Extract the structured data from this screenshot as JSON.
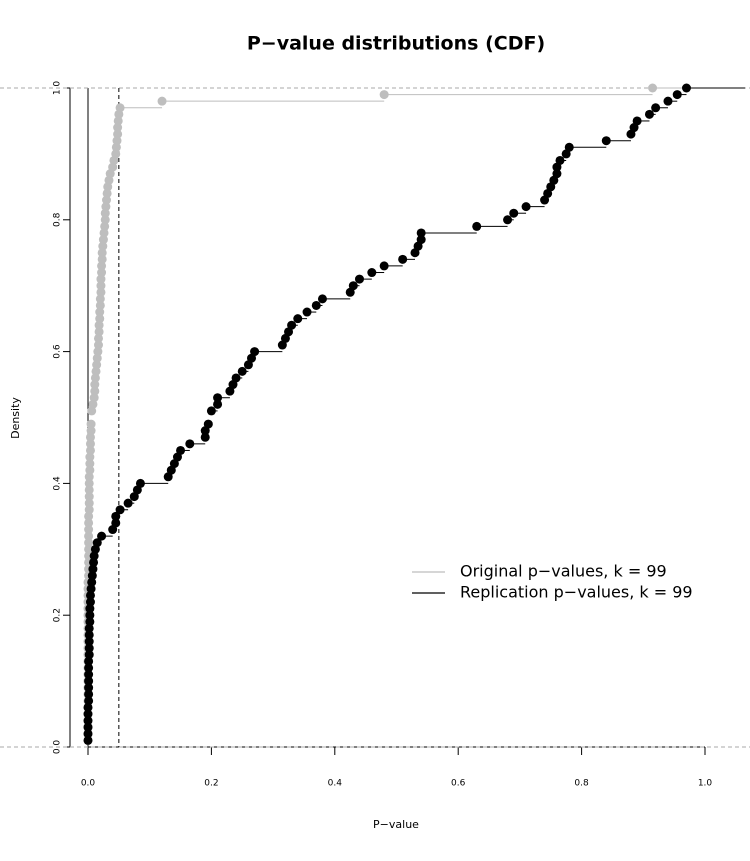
{
  "chart_data": {
    "type": "ecdf",
    "title": "P−value distributions (CDF)",
    "x_label": "P−value",
    "y_label": "Density",
    "xlim": [
      0,
      1
    ],
    "ylim": [
      0,
      1
    ],
    "xticks": [
      {
        "value": 0,
        "label": "0.0"
      },
      0.2,
      0.4,
      0.6,
      0.8,
      {
        "value": 1,
        "label": "1.0"
      }
    ],
    "yticks": [
      {
        "value": 0,
        "label": "0.0"
      },
      0.2,
      0.4,
      0.6,
      0.8,
      {
        "value": 1,
        "label": "1.0"
      }
    ],
    "vlines": [
      0.05
    ],
    "series": [
      {
        "name": "Original p−values, k =  99",
        "color": "#bebebe",
        "x": [
          0,
          0,
          0,
          0,
          0,
          0,
          0,
          0,
          0,
          0,
          0,
          0,
          0,
          0,
          0,
          0,
          0,
          0,
          0,
          0,
          0,
          0,
          0,
          0,
          0,
          0.001,
          0.001,
          0.001,
          0.001,
          0.001,
          0.001,
          0.001,
          0.001,
          0.001,
          0.001,
          0.002,
          0.002,
          0.002,
          0.002,
          0.002,
          0.002,
          0.003,
          0.003,
          0.003,
          0.004,
          0.004,
          0.004,
          0.005,
          0.005,
          0.006,
          0.008,
          0.01,
          0.011,
          0.011,
          0.012,
          0.013,
          0.014,
          0.015,
          0.016,
          0.017,
          0.017,
          0.018,
          0.018,
          0.019,
          0.019,
          0.02,
          0.02,
          0.021,
          0.021,
          0.021,
          0.022,
          0.022,
          0.023,
          0.023,
          0.024,
          0.025,
          0.026,
          0.027,
          0.028,
          0.028,
          0.029,
          0.03,
          0.031,
          0.032,
          0.034,
          0.036,
          0.04,
          0.042,
          0.045,
          0.046,
          0.047,
          0.048,
          0.048,
          0.049,
          0.05,
          0.052,
          0.12,
          0.48,
          0.915
        ],
        "values": [
          0.01,
          0.02,
          0.03,
          0.04,
          0.05,
          0.06,
          0.07,
          0.08,
          0.09,
          0.1,
          0.11,
          0.12,
          0.13,
          0.14,
          0.15,
          0.16,
          0.17,
          0.18,
          0.19,
          0.2,
          0.21,
          0.22,
          0.23,
          0.24,
          0.25,
          0.26,
          0.27,
          0.28,
          0.29,
          0.3,
          0.31,
          0.32,
          0.33,
          0.34,
          0.35,
          0.36,
          0.37,
          0.38,
          0.39,
          0.4,
          0.41,
          0.42,
          0.43,
          0.44,
          0.45,
          0.46,
          0.47,
          0.48,
          0.49,
          0.51,
          0.52,
          0.53,
          0.54,
          0.55,
          0.56,
          0.57,
          0.58,
          0.59,
          0.6,
          0.61,
          0.62,
          0.63,
          0.64,
          0.65,
          0.66,
          0.67,
          0.68,
          0.69,
          0.7,
          0.71,
          0.72,
          0.73,
          0.74,
          0.75,
          0.76,
          0.77,
          0.78,
          0.79,
          0.8,
          0.81,
          0.82,
          0.83,
          0.84,
          0.85,
          0.86,
          0.87,
          0.88,
          0.89,
          0.9,
          0.91,
          0.92,
          0.93,
          0.94,
          0.95,
          0.96,
          0.97,
          0.98,
          0.99,
          1.0
        ]
      },
      {
        "name": "Replication p−values, k =  99",
        "color": "#000000",
        "x": [
          0,
          0,
          0,
          0,
          0,
          0,
          0.001,
          0.001,
          0.001,
          0.001,
          0.001,
          0.001,
          0.001,
          0.002,
          0.002,
          0.002,
          0.002,
          0.002,
          0.003,
          0.003,
          0.003,
          0.004,
          0.004,
          0.005,
          0.006,
          0.007,
          0.008,
          0.009,
          0.01,
          0.012,
          0.015,
          0.022,
          0.04,
          0.045,
          0.045,
          0.052,
          0.065,
          0.075,
          0.08,
          0.085,
          0.13,
          0.135,
          0.14,
          0.145,
          0.15,
          0.165,
          0.19,
          0.19,
          0.195,
          0.2,
          0.21,
          0.21,
          0.23,
          0.235,
          0.24,
          0.25,
          0.26,
          0.265,
          0.27,
          0.315,
          0.32,
          0.325,
          0.33,
          0.34,
          0.355,
          0.37,
          0.38,
          0.425,
          0.43,
          0.44,
          0.46,
          0.48,
          0.51,
          0.53,
          0.535,
          0.54,
          0.54,
          0.63,
          0.68,
          0.69,
          0.71,
          0.74,
          0.745,
          0.75,
          0.755,
          0.76,
          0.76,
          0.765,
          0.775,
          0.78,
          0.84,
          0.88,
          0.885,
          0.89,
          0.91,
          0.92,
          0.94,
          0.955,
          0.97
        ],
        "values": [
          0.01,
          0.02,
          0.03,
          0.04,
          0.05,
          0.06,
          0.07,
          0.08,
          0.09,
          0.1,
          0.11,
          0.12,
          0.13,
          0.14,
          0.15,
          0.16,
          0.17,
          0.18,
          0.19,
          0.2,
          0.21,
          0.22,
          0.23,
          0.24,
          0.25,
          0.26,
          0.27,
          0.28,
          0.29,
          0.3,
          0.31,
          0.32,
          0.33,
          0.34,
          0.35,
          0.36,
          0.37,
          0.38,
          0.39,
          0.4,
          0.41,
          0.42,
          0.43,
          0.44,
          0.45,
          0.46,
          0.47,
          0.48,
          0.49,
          0.51,
          0.52,
          0.53,
          0.54,
          0.55,
          0.56,
          0.57,
          0.58,
          0.59,
          0.6,
          0.61,
          0.62,
          0.63,
          0.64,
          0.65,
          0.66,
          0.67,
          0.68,
          0.69,
          0.7,
          0.71,
          0.72,
          0.73,
          0.74,
          0.75,
          0.76,
          0.77,
          0.78,
          0.79,
          0.8,
          0.81,
          0.82,
          0.83,
          0.84,
          0.85,
          0.86,
          0.87,
          0.88,
          0.89,
          0.9,
          0.91,
          0.92,
          0.93,
          0.94,
          0.95,
          0.96,
          0.97,
          0.98,
          0.99,
          1.0
        ]
      }
    ]
  }
}
